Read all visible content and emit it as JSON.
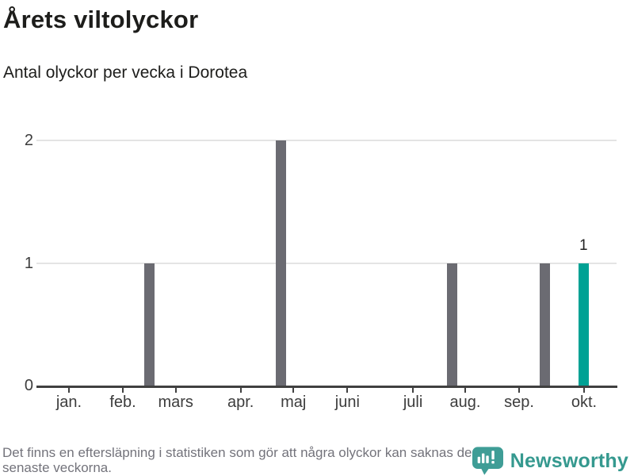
{
  "header": {
    "title": "Årets viltolyckor",
    "subtitle": "Antal olyckor per vecka i Dorotea"
  },
  "chart_data": {
    "type": "bar",
    "title": "Årets viltolyckor",
    "subtitle": "Antal olyckor per vecka i Dorotea",
    "xlabel": "",
    "ylabel": "",
    "ylim": [
      0,
      2
    ],
    "y_ticks": [
      0,
      1,
      2
    ],
    "grid": "horizontal-only",
    "legend": "none",
    "x_axis_months": [
      "jan.",
      "feb.",
      "mars",
      "apr.",
      "maj",
      "juni",
      "juli",
      "aug.",
      "sep.",
      "okt."
    ],
    "x_tick_positions": [
      0.056,
      0.149,
      0.24,
      0.352,
      0.443,
      0.536,
      0.649,
      0.739,
      0.832,
      0.944
    ],
    "bars": [
      {
        "value": 1,
        "pos": 0.194,
        "color": "default",
        "label": ""
      },
      {
        "value": 2,
        "pos": 0.421,
        "color": "default",
        "label": ""
      },
      {
        "value": 1,
        "pos": 0.717,
        "color": "default",
        "label": ""
      },
      {
        "value": 1,
        "pos": 0.876,
        "color": "default",
        "label": ""
      },
      {
        "value": 1,
        "pos": 0.943,
        "color": "highlight",
        "label": "1"
      }
    ]
  },
  "colors": {
    "bar_default": "#6b6b72",
    "bar_highlight": "#00a194",
    "grid": "#e4e4e4",
    "axis": "#404040",
    "brand_teal": "#35998f"
  },
  "footer": {
    "note": "Det finns en eftersläpning i statistiken som gör att några olyckor kan saknas de senaste veckorna.",
    "brand": "Newsworthy"
  }
}
